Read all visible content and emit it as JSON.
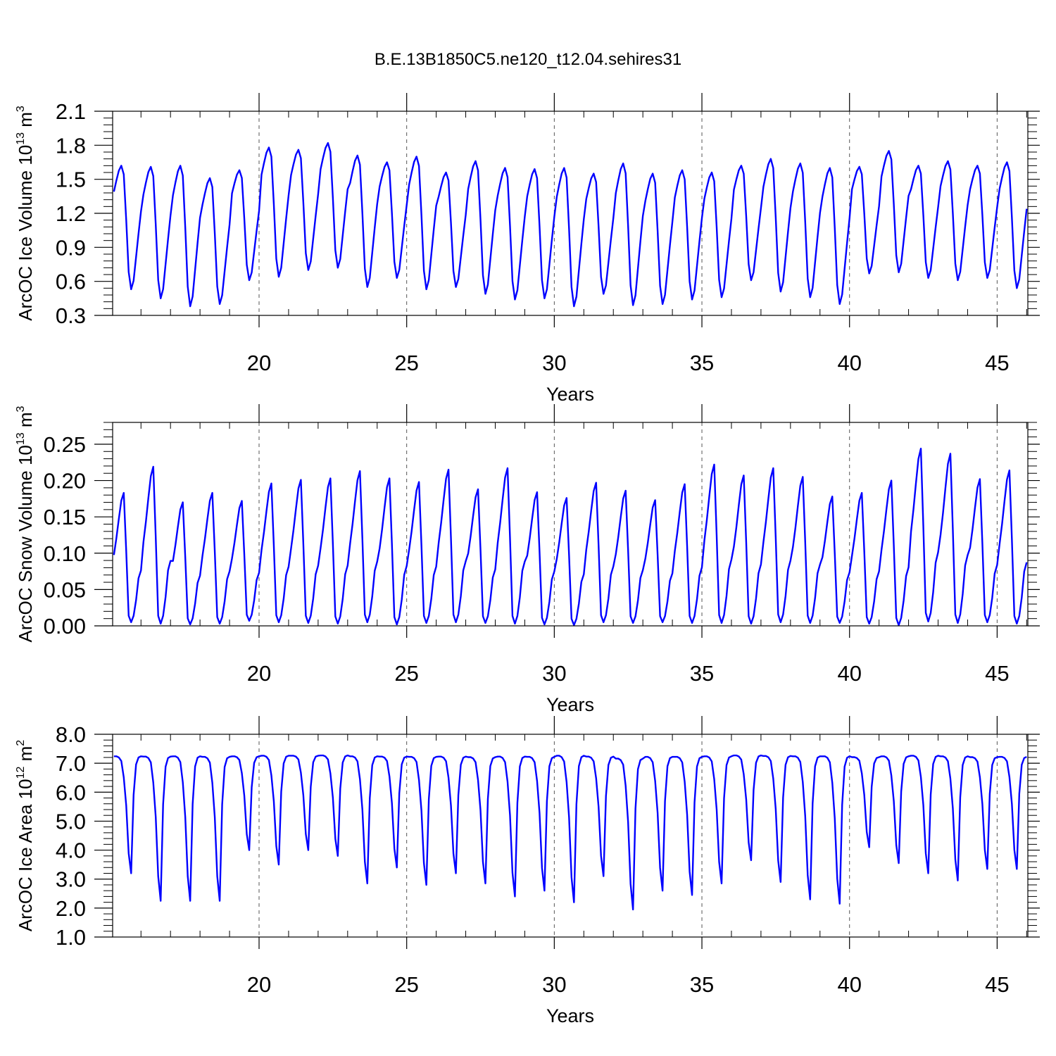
{
  "figure": {
    "title": "B.E.13B1850C5.ne120_t12.04.sehires31"
  },
  "chart_data": [
    {
      "type": "line",
      "title": "",
      "ylabel_main": "ArcOC Ice Volume 10",
      "ylabel_exp": "13",
      "ylabel_unit": " m",
      "ylabel_unit_exp": "3",
      "xlabel": "Years",
      "xlim": [
        15.04,
        46.04
      ],
      "ylim": [
        0.3,
        2.1
      ],
      "yticks": [
        "0.3",
        "0.6",
        "0.9",
        "1.2",
        "1.5",
        "1.8",
        "2.1"
      ],
      "ytick_values": [
        0.3,
        0.6,
        0.9,
        1.2,
        1.5,
        1.8,
        2.1
      ],
      "xticks": [
        "20",
        "25",
        "30",
        "35",
        "40",
        "45"
      ],
      "xtick_values": [
        20,
        25,
        30,
        35,
        40,
        45
      ],
      "line_color": "#0000ff",
      "grid": "vertical dashed at major x ticks",
      "seasonal_model": {
        "start_year": 15,
        "month_offset": 1,
        "n_months": 372,
        "month_shape": [
          0.79,
          0.88,
          0.96,
          1.0,
          0.93,
          0.56,
          0.14,
          0.0,
          0.07,
          0.26,
          0.45,
          0.63
        ],
        "annual_max": [
          1.62,
          1.61,
          1.62,
          1.51,
          1.58,
          1.78,
          1.76,
          1.82,
          1.71,
          1.65,
          1.7,
          1.56,
          1.66,
          1.6,
          1.59,
          1.6,
          1.55,
          1.64,
          1.55,
          1.58,
          1.56,
          1.62,
          1.68,
          1.64,
          1.6,
          1.61,
          1.75,
          1.62,
          1.66,
          1.62,
          1.65
        ],
        "annual_min": [
          0.53,
          0.45,
          0.38,
          0.4,
          0.61,
          0.64,
          0.7,
          0.72,
          0.55,
          0.63,
          0.53,
          0.55,
          0.49,
          0.44,
          0.45,
          0.38,
          0.49,
          0.39,
          0.4,
          0.44,
          0.46,
          0.61,
          0.51,
          0.46,
          0.4,
          0.67,
          0.68,
          0.63,
          0.61,
          0.63,
          0.54
        ]
      }
    },
    {
      "type": "line",
      "title": "",
      "ylabel_main": "ArcOC Snow Volume 10",
      "ylabel_exp": "13",
      "ylabel_unit": " m",
      "ylabel_unit_exp": "3",
      "xlabel": "Years",
      "xlim": [
        15.04,
        46.04
      ],
      "ylim": [
        0.0,
        0.28
      ],
      "yticks": [
        "0.00",
        "0.05",
        "0.10",
        "0.15",
        "0.20",
        "0.25"
      ],
      "ytick_values": [
        0.0,
        0.05,
        0.1,
        0.15,
        0.2,
        0.25
      ],
      "xticks": [
        "20",
        "25",
        "30",
        "35",
        "40",
        "45"
      ],
      "xtick_values": [
        20,
        25,
        30,
        35,
        40,
        45
      ],
      "line_color": "#0000ff",
      "grid": "vertical dashed at major x ticks",
      "seasonal_model": {
        "start_year": 15,
        "month_offset": 1,
        "n_months": 372,
        "month_shape": [
          0.52,
          0.65,
          0.8,
          0.94,
          1.0,
          0.55,
          0.05,
          0.0,
          0.05,
          0.17,
          0.34,
          0.4
        ],
        "annual_max": [
          0.183,
          0.219,
          0.17,
          0.183,
          0.172,
          0.196,
          0.201,
          0.203,
          0.213,
          0.203,
          0.198,
          0.215,
          0.188,
          0.217,
          0.184,
          0.176,
          0.197,
          0.186,
          0.173,
          0.195,
          0.222,
          0.207,
          0.217,
          0.205,
          0.178,
          0.183,
          0.2,
          0.244,
          0.237,
          0.202,
          0.214
        ],
        "annual_min": [
          0.005,
          0.003,
          0.002,
          0.003,
          0.007,
          0.005,
          0.004,
          0.003,
          0.005,
          0.002,
          0.004,
          0.005,
          0.004,
          0.003,
          0.002,
          0.001,
          0.005,
          0.004,
          0.005,
          0.004,
          0.004,
          0.003,
          0.005,
          0.004,
          0.004,
          0.003,
          0.001,
          0.006,
          0.004,
          0.005,
          0.003
        ]
      }
    },
    {
      "type": "line",
      "title": "",
      "ylabel_main": "ArcOC Ice Area 10",
      "ylabel_exp": "12",
      "ylabel_unit": " m",
      "ylabel_unit_exp": "2",
      "xlabel": "Years",
      "xlim": [
        15.04,
        46.04
      ],
      "ylim": [
        1.0,
        8.0
      ],
      "yticks": [
        "1.0",
        "2.0",
        "3.0",
        "4.0",
        "5.0",
        "6.0",
        "7.0",
        "8.0"
      ],
      "ytick_values": [
        1.0,
        2.0,
        3.0,
        4.0,
        5.0,
        6.0,
        7.0,
        8.0
      ],
      "xticks": [
        "20",
        "25",
        "30",
        "35",
        "40",
        "45"
      ],
      "xtick_values": [
        20,
        25,
        30,
        35,
        40,
        45
      ],
      "line_color": "#0000ff",
      "grid": "vertical dashed at major x ticks",
      "seasonal_model": {
        "start_year": 15,
        "month_offset": 1,
        "n_months": 372,
        "month_shape": [
          1.0,
          1.0,
          0.99,
          0.96,
          0.82,
          0.58,
          0.17,
          0.0,
          0.67,
          0.93,
          0.99,
          1.0
        ],
        "annual_max": [
          7.24,
          7.23,
          7.24,
          7.22,
          7.24,
          7.26,
          7.26,
          7.27,
          7.24,
          7.23,
          7.22,
          7.23,
          7.21,
          7.23,
          7.22,
          7.26,
          7.23,
          7.16,
          7.22,
          7.22,
          7.24,
          7.27,
          7.25,
          7.24,
          7.24,
          7.21,
          7.24,
          7.26,
          7.24,
          7.21,
          7.22
        ],
        "annual_min": [
          3.2,
          2.25,
          2.25,
          2.25,
          4.0,
          3.5,
          4.0,
          3.8,
          2.85,
          3.4,
          2.8,
          3.2,
          2.85,
          2.4,
          2.6,
          2.2,
          3.1,
          1.95,
          2.6,
          2.45,
          2.85,
          3.65,
          2.9,
          2.3,
          2.15,
          4.1,
          3.55,
          3.2,
          2.95,
          3.35,
          3.35
        ]
      }
    }
  ]
}
